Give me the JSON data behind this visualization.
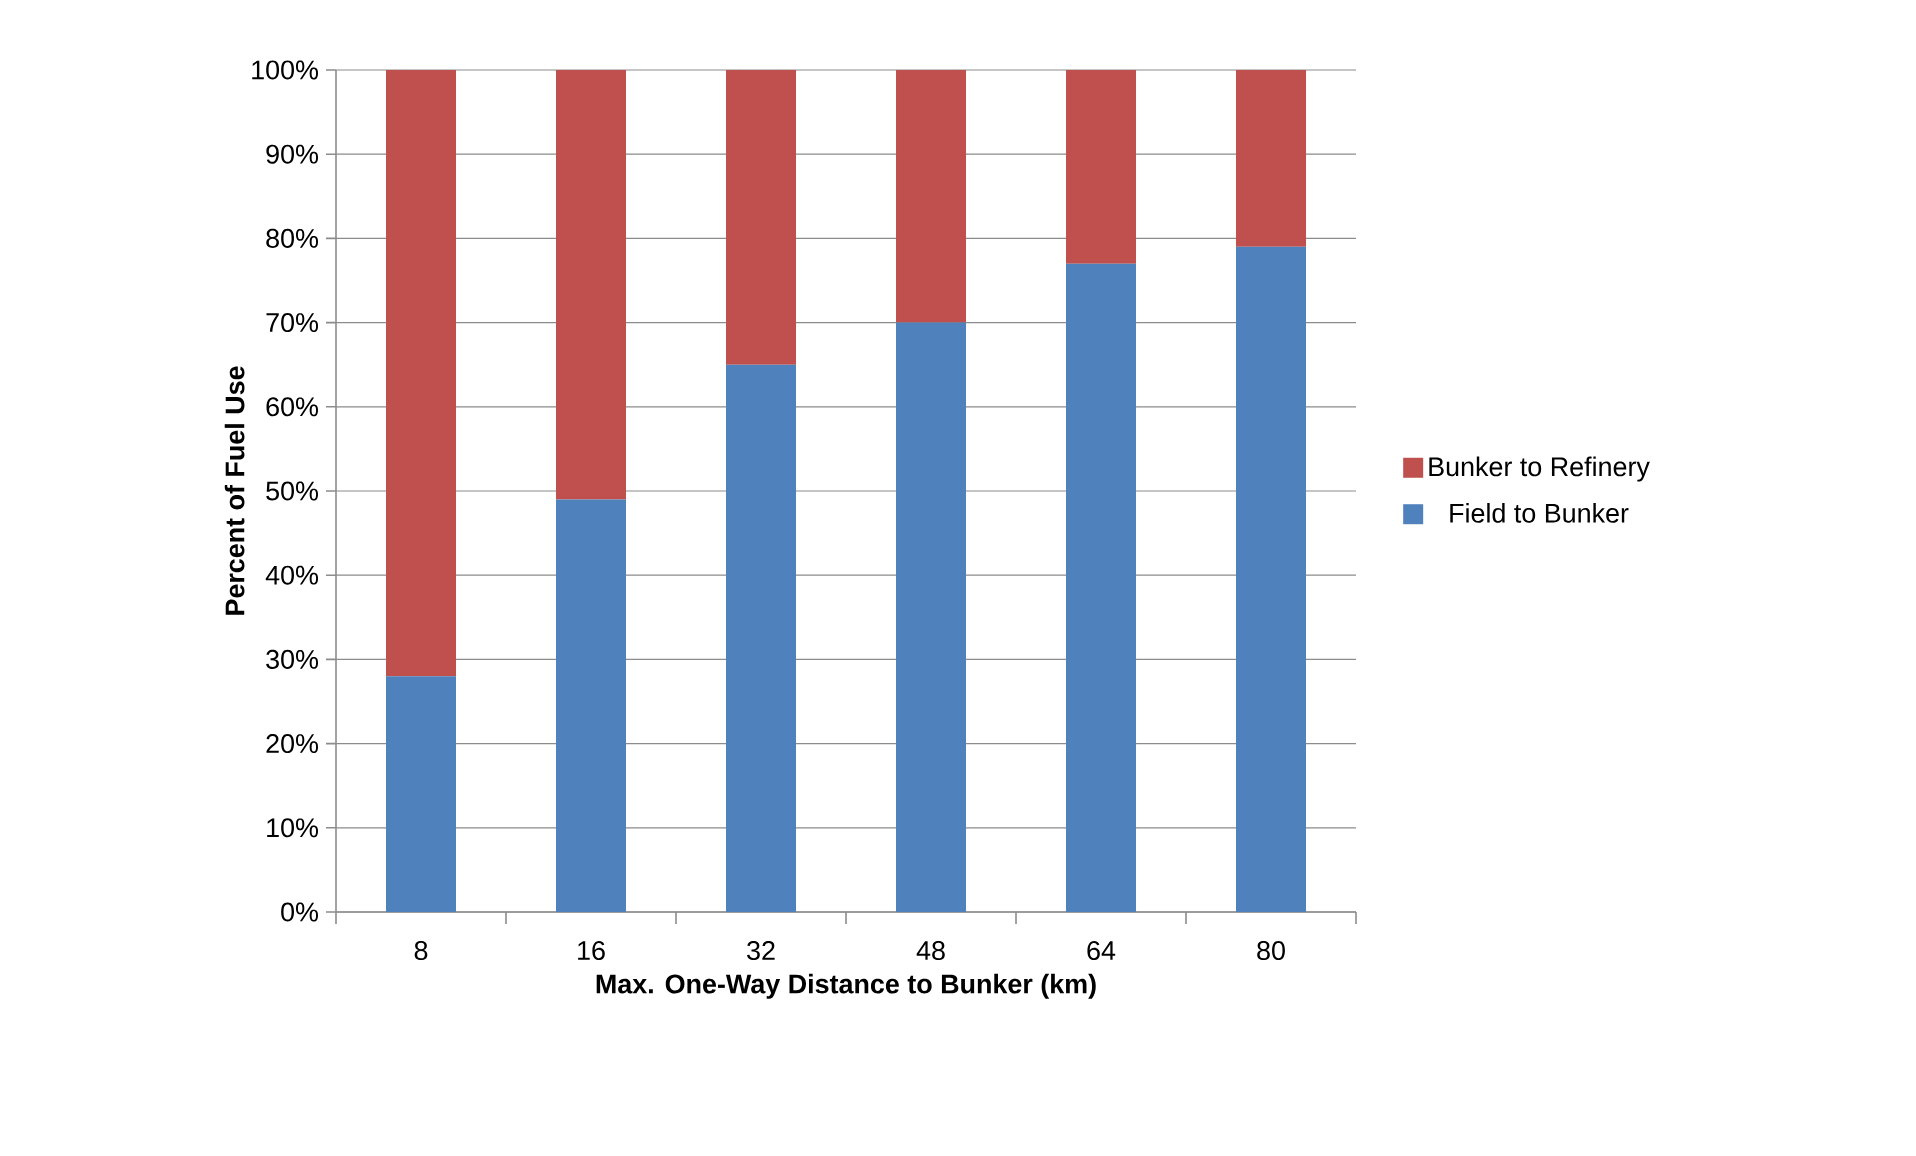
{
  "chart_data": {
    "type": "bar",
    "stacked": true,
    "xlabel": "Max. One-Way Distance to Bunker (km)",
    "ylabel": "Percent of Fuel Use",
    "categories": [
      "8",
      "16",
      "32",
      "48",
      "64",
      "80"
    ],
    "series": [
      {
        "name": "Field to Bunker",
        "color": "#4f81bd",
        "values": [
          28,
          49,
          65,
          70,
          77,
          79
        ]
      },
      {
        "name": "Bunker to Refinery",
        "color": "#c0504d",
        "values": [
          72,
          51,
          35,
          30,
          23,
          21
        ]
      }
    ],
    "ylim": [
      0,
      100
    ],
    "yticks": [
      {
        "value": 0,
        "label": "0%"
      },
      {
        "value": 10,
        "label": "10%"
      },
      {
        "value": 20,
        "label": "20%"
      },
      {
        "value": 30,
        "label": "30%"
      },
      {
        "value": 40,
        "label": "40%"
      },
      {
        "value": 50,
        "label": "50%"
      },
      {
        "value": 60,
        "label": "60%"
      },
      {
        "value": 70,
        "label": "70%"
      },
      {
        "value": 80,
        "label": "80%"
      },
      {
        "value": 90,
        "label": "90%"
      },
      {
        "value": 100,
        "label": "100%"
      }
    ],
    "grid": "y",
    "legend": "right"
  }
}
